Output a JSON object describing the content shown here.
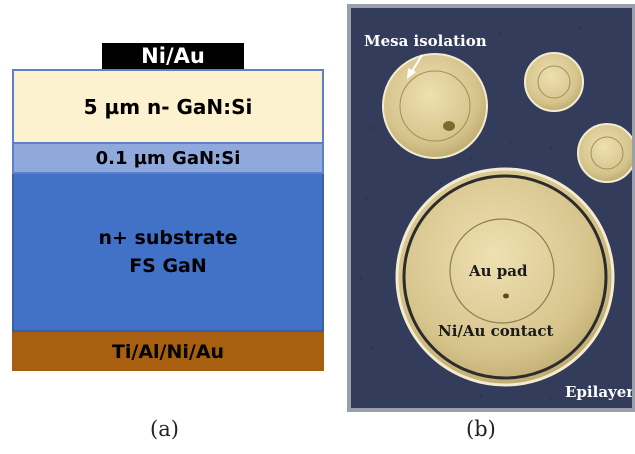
{
  "diagram_a": {
    "layers": {
      "contact": "Ni/Au",
      "drift": "5 µm n- GaN:Si",
      "buffer": "0.1 µm GaN:Si",
      "substrate_line1": "n+ substrate",
      "substrate_line2": "FS GaN",
      "ohmic": "Ti/Al/Ni/Au"
    },
    "caption": "(a)"
  },
  "diagram_b": {
    "labels": {
      "mesa": "Mesa isolation",
      "au_pad": "Au pad",
      "contact": "Ni/Au contact",
      "epilayer": "Epilayer"
    },
    "caption": "(b)"
  }
}
